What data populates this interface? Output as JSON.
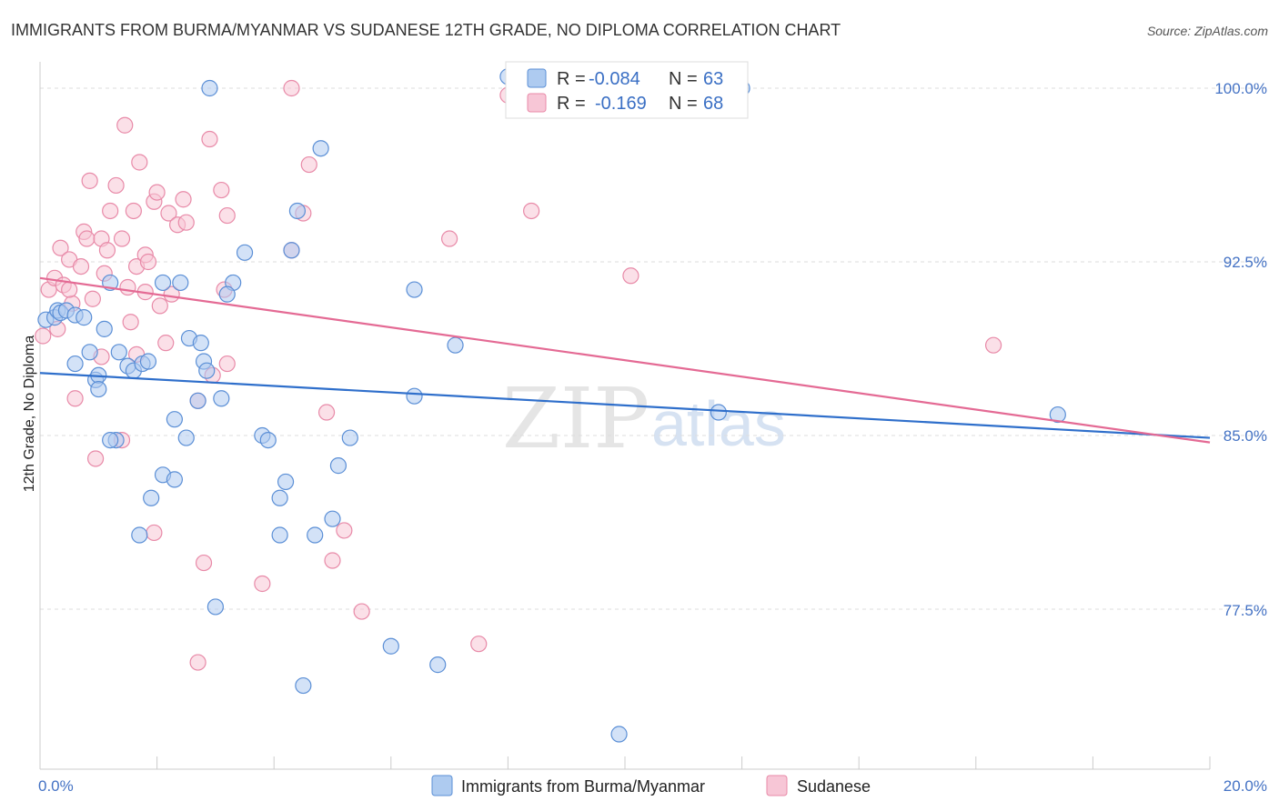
{
  "title": "IMMIGRANTS FROM BURMA/MYANMAR VS SUDANESE 12TH GRADE, NO DIPLOMA CORRELATION CHART",
  "source": "Source: ZipAtlas.com",
  "watermark": {
    "zip": "ZIP",
    "atlas": "atlas"
  },
  "colors": {
    "blue_fill": "#aecbf0",
    "blue_stroke": "#5b8fd6",
    "blue_line": "#2f6fcb",
    "pink_fill": "#f7c6d6",
    "pink_stroke": "#e88aa8",
    "pink_line": "#e46a94",
    "tick_text": "#4472c4",
    "grid": "#dddddd"
  },
  "legend_top": {
    "rows": [
      {
        "r_label": "R =",
        "r_value": "-0.084",
        "n_label": "N =",
        "n_value": "63"
      },
      {
        "r_label": "R =",
        "r_value": "-0.169",
        "n_label": "N =",
        "n_value": "68"
      }
    ]
  },
  "legend_bottom": {
    "series1": "Immigrants from Burma/Myanmar",
    "series2": "Sudanese"
  },
  "chart_data": {
    "type": "scatter",
    "title": "IMMIGRANTS FROM BURMA/MYANMAR VS SUDANESE 12TH GRADE, NO DIPLOMA CORRELATION CHART",
    "xlabel": "",
    "ylabel": "12th Grade, No Diploma",
    "xlim": [
      0,
      20
    ],
    "ylim": [
      70.5,
      101.5
    ],
    "x_tick_labels": [
      "0.0%",
      "20.0%"
    ],
    "y_ticks": [
      77.5,
      85.0,
      92.5,
      100.0
    ],
    "y_tick_labels": [
      "77.5%",
      "85.0%",
      "92.5%",
      "100.0%"
    ],
    "grid": true,
    "series": [
      {
        "name": "Immigrants from Burma/Myanmar",
        "r": -0.084,
        "n": 63,
        "trend": {
          "x": [
            0,
            20
          ],
          "y": [
            87.7,
            84.9
          ]
        },
        "points": [
          [
            0.1,
            90.0
          ],
          [
            0.25,
            90.1
          ],
          [
            0.3,
            90.4
          ],
          [
            0.35,
            90.3
          ],
          [
            0.45,
            90.4
          ],
          [
            0.6,
            90.2
          ],
          [
            0.75,
            90.1
          ],
          [
            0.6,
            88.1
          ],
          [
            0.85,
            88.6
          ],
          [
            0.95,
            87.4
          ],
          [
            1.0,
            87.6
          ],
          [
            1.1,
            89.6
          ],
          [
            1.2,
            91.6
          ],
          [
            1.35,
            88.6
          ],
          [
            1.5,
            88.0
          ],
          [
            1.6,
            87.8
          ],
          [
            1.75,
            88.1
          ],
          [
            1.85,
            88.2
          ],
          [
            2.1,
            91.6
          ],
          [
            2.4,
            91.6
          ],
          [
            2.55,
            89.2
          ],
          [
            2.75,
            89.0
          ],
          [
            2.8,
            88.2
          ],
          [
            2.85,
            87.8
          ],
          [
            2.7,
            86.5
          ],
          [
            2.3,
            85.7
          ],
          [
            2.5,
            84.9
          ],
          [
            1.3,
            84.8
          ],
          [
            1.0,
            87.0
          ],
          [
            2.1,
            83.3
          ],
          [
            2.3,
            83.1
          ],
          [
            1.7,
            80.7
          ],
          [
            3.3,
            91.6
          ],
          [
            3.2,
            91.1
          ],
          [
            3.5,
            92.9
          ],
          [
            2.9,
            100.0
          ],
          [
            4.3,
            93.0
          ],
          [
            4.4,
            94.7
          ],
          [
            4.8,
            97.4
          ],
          [
            3.1,
            86.6
          ],
          [
            3.8,
            85.0
          ],
          [
            3.9,
            84.8
          ],
          [
            5.3,
            84.9
          ],
          [
            5.1,
            83.7
          ],
          [
            4.1,
            82.3
          ],
          [
            4.1,
            80.7
          ],
          [
            4.2,
            83.0
          ],
          [
            4.7,
            80.7
          ],
          [
            5.0,
            81.4
          ],
          [
            3.0,
            77.6
          ],
          [
            6.4,
            91.3
          ],
          [
            7.1,
            88.9
          ],
          [
            6.4,
            86.7
          ],
          [
            4.5,
            74.2
          ],
          [
            6.0,
            75.9
          ],
          [
            6.8,
            75.1
          ],
          [
            9.9,
            72.1
          ],
          [
            12.0,
            100.0
          ],
          [
            8.0,
            100.5
          ],
          [
            1.2,
            84.8
          ],
          [
            11.6,
            86.0
          ],
          [
            17.4,
            85.9
          ],
          [
            1.9,
            82.3
          ]
        ]
      },
      {
        "name": "Sudanese",
        "r": -0.169,
        "n": 68,
        "trend": {
          "x": [
            0,
            20
          ],
          "y": [
            91.8,
            84.7
          ]
        },
        "points": [
          [
            0.05,
            89.3
          ],
          [
            0.15,
            91.3
          ],
          [
            0.25,
            91.8
          ],
          [
            0.4,
            91.5
          ],
          [
            0.35,
            93.1
          ],
          [
            0.5,
            92.6
          ],
          [
            0.55,
            90.7
          ],
          [
            0.7,
            92.3
          ],
          [
            0.75,
            93.8
          ],
          [
            0.8,
            93.5
          ],
          [
            0.85,
            96.0
          ],
          [
            0.9,
            90.9
          ],
          [
            1.05,
            93.5
          ],
          [
            1.1,
            92.0
          ],
          [
            1.15,
            93.0
          ],
          [
            1.2,
            94.7
          ],
          [
            1.3,
            95.8
          ],
          [
            1.4,
            93.5
          ],
          [
            1.45,
            98.4
          ],
          [
            1.5,
            91.4
          ],
          [
            1.55,
            89.9
          ],
          [
            1.6,
            94.7
          ],
          [
            1.7,
            96.8
          ],
          [
            1.65,
            92.3
          ],
          [
            1.8,
            92.8
          ],
          [
            1.85,
            92.5
          ],
          [
            1.95,
            95.1
          ],
          [
            2.0,
            95.5
          ],
          [
            2.2,
            94.6
          ],
          [
            2.35,
            94.1
          ],
          [
            2.45,
            95.2
          ],
          [
            2.5,
            94.2
          ],
          [
            2.25,
            91.1
          ],
          [
            2.15,
            89.0
          ],
          [
            1.65,
            88.5
          ],
          [
            2.9,
            97.8
          ],
          [
            3.1,
            95.6
          ],
          [
            3.2,
            94.5
          ],
          [
            3.15,
            91.3
          ],
          [
            3.2,
            88.1
          ],
          [
            2.95,
            87.6
          ],
          [
            2.7,
            86.5
          ],
          [
            4.3,
            93.0
          ],
          [
            4.6,
            96.7
          ],
          [
            4.5,
            94.6
          ],
          [
            4.9,
            86.0
          ],
          [
            5.2,
            80.9
          ],
          [
            5.0,
            79.6
          ],
          [
            5.5,
            77.4
          ],
          [
            7.0,
            93.5
          ],
          [
            8.0,
            99.7
          ],
          [
            8.4,
            94.7
          ],
          [
            4.3,
            100.0
          ],
          [
            7.5,
            76.0
          ],
          [
            3.8,
            78.6
          ],
          [
            2.8,
            79.5
          ],
          [
            2.7,
            75.2
          ],
          [
            1.95,
            80.8
          ],
          [
            0.95,
            84.0
          ],
          [
            0.6,
            86.6
          ],
          [
            0.3,
            89.6
          ],
          [
            1.05,
            88.4
          ],
          [
            1.4,
            84.8
          ],
          [
            10.1,
            91.9
          ],
          [
            16.3,
            88.9
          ],
          [
            0.5,
            91.3
          ],
          [
            1.8,
            91.2
          ],
          [
            2.05,
            90.6
          ]
        ]
      }
    ]
  }
}
